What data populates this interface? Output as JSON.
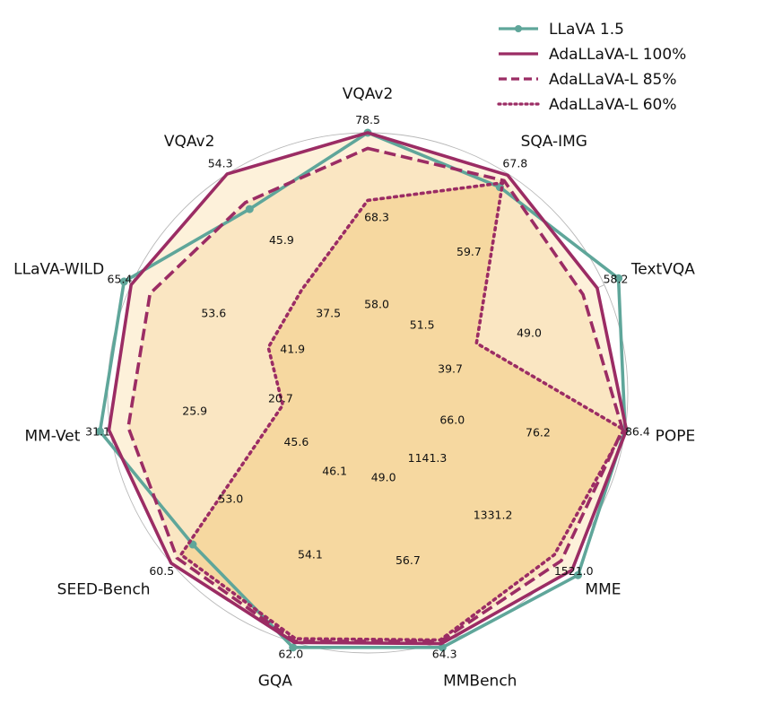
{
  "chart_data": {
    "type": "radar",
    "title": "",
    "axes": [
      {
        "name": "VQAv2",
        "ticks": [
          "58.0",
          "68.3",
          "78.5"
        ],
        "max": 78.5
      },
      {
        "name": "SQA-IMG",
        "ticks": [
          "51.5",
          "59.7",
          "67.8"
        ],
        "max": 67.8
      },
      {
        "name": "TextVQA",
        "ticks": [
          "39.7",
          "49.0",
          "58.2"
        ],
        "max": 58.2
      },
      {
        "name": "POPE",
        "ticks": [
          "66.0",
          "76.2",
          "86.4"
        ],
        "max": 86.4
      },
      {
        "name": "MME",
        "ticks": [
          "1141.3",
          "1331.2",
          "1521.0"
        ],
        "max": 1521.0
      },
      {
        "name": "MMBench",
        "ticks": [
          "49.0",
          "56.7",
          "64.3"
        ],
        "max": 64.3
      },
      {
        "name": "GQA",
        "ticks": [
          "46.1",
          "54.1",
          "62.0"
        ],
        "max": 62.0
      },
      {
        "name": "SEED-Bench",
        "ticks": [
          "45.6",
          "53.0",
          "60.5"
        ],
        "max": 60.5
      },
      {
        "name": "MM-Vet",
        "ticks": [
          "20.7",
          "25.9",
          "31.1"
        ],
        "max": 31.1
      },
      {
        "name": "LLaVA-WILD",
        "ticks": [
          "41.9",
          "53.6",
          "65.4"
        ],
        "max": 65.4
      },
      {
        "name": "VQAv2",
        "ticks": [
          "37.5",
          "45.9",
          "54.3"
        ],
        "max": 54.3
      }
    ],
    "series": [
      {
        "name": "LLaVA 1.5",
        "color": "#5fa69a",
        "style": "solid-marker",
        "fractions": [
          1.0,
          0.94,
          1.06,
          1.0,
          1.07,
          1.02,
          1.02,
          0.89,
          1.04,
          1.03,
          0.84
        ]
      },
      {
        "name": "AdaLLaVA-L 100%",
        "color": "#9b2c64",
        "style": "solid",
        "fractions": [
          1.0,
          0.995,
          0.97,
          1.005,
          1.04,
          1.005,
          1.0,
          1.0,
          1.005,
          1.0,
          1.0
        ]
      },
      {
        "name": "AdaLLaVA-L 85%",
        "color": "#9b2c64",
        "style": "dashed",
        "fractions": [
          0.94,
          0.97,
          0.91,
          0.99,
          0.985,
          0.995,
          0.995,
          0.97,
          0.93,
          0.92,
          0.87
        ]
      },
      {
        "name": "AdaLLaVA-L 60%",
        "color": "#9b2c64",
        "style": "dotted",
        "fractions": [
          0.74,
          0.96,
          0.46,
          0.995,
          0.95,
          0.99,
          0.985,
          0.95,
          0.33,
          0.42,
          0.47
        ]
      }
    ],
    "legend_position": "top-right",
    "grid": true
  }
}
